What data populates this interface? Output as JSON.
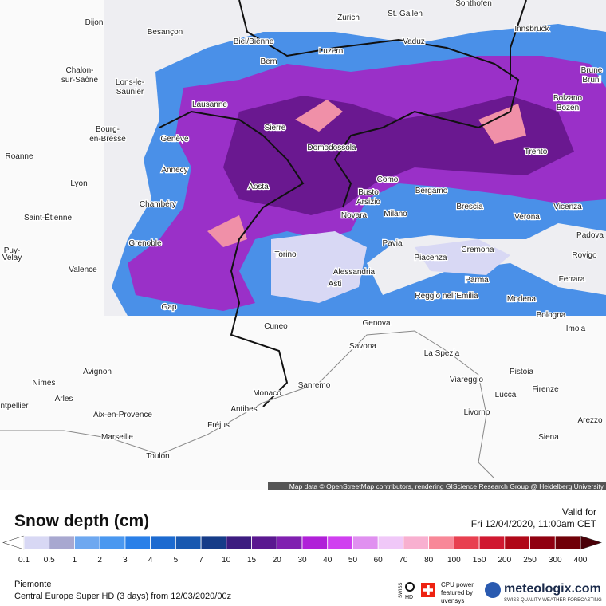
{
  "map": {
    "attribution": "Map data © OpenStreetMap contributors, rendering GIScience Research Group @ Heidelberg University",
    "cities": [
      "Dijon",
      "Besançon",
      "Biel/Bienne",
      "Zurich",
      "St. Gallen",
      "Sonthofen",
      "Innsbruck",
      "Vaduz",
      "Bern",
      "Luzern",
      "Chalon-",
      "sur-Saône",
      "Lons-le-",
      "Saunier",
      "Brune",
      "Bruni",
      "Bolzano",
      "Bozen",
      "Lausanne",
      "Sierre",
      "Domodossola",
      "Bourg-",
      "en-Bresse",
      "Genève",
      "Roanne",
      "Trento",
      "Annecy",
      "Como",
      "Lyon",
      "Aosta",
      "Busto",
      "Arsizio",
      "Bergamo",
      "Chambéry",
      "Brescia",
      "Vicenza",
      "Saint-Étienne",
      "Novara",
      "Milano",
      "Verona",
      "Padova",
      "Grenoble",
      "Pavia",
      "Cremona",
      "Puy-",
      "Velay",
      "Piacenza",
      "Torino",
      "Rovigo",
      "Valence",
      "Alessandria",
      "Parma",
      "Asti",
      "Ferrara",
      "Reggio nell'Emilia",
      "Modena",
      "Gap",
      "Bologna",
      "Cuneo",
      "Genova",
      "Imola",
      "Savona",
      "La Spezia",
      "Avignon",
      "Pistoia",
      "Nîmes",
      "Viareggio",
      "Sanremo",
      "Monaco",
      "Lucca",
      "Firenze",
      "Arles",
      "Antibes",
      "Aix-en-Provence",
      "ntpellier",
      "Fréjus",
      "Livorno",
      "Arezzo",
      "Marseille",
      "Siena",
      "Toulon"
    ]
  },
  "legend": {
    "title": "Snow depth (cm)",
    "valid_label": "Valid for",
    "valid_time": "Fri 12/04/2020, 11:00am CET",
    "ticks": [
      0.1,
      0.5,
      1,
      2,
      3,
      4,
      5,
      7,
      10,
      15,
      20,
      30,
      40,
      50,
      60,
      70,
      80,
      100,
      150,
      200,
      250,
      300,
      400
    ],
    "colors": [
      "#d8d8f4",
      "#a8a8d0",
      "#6ea8f0",
      "#4a98f0",
      "#2a80e8",
      "#1c6ad0",
      "#1858b0",
      "#163c88",
      "#3c1c80",
      "#5a1890",
      "#8020b0",
      "#b020d8",
      "#d040f0",
      "#e090f0",
      "#f0c8f8",
      "#f8b0d0",
      "#f88898",
      "#e84050",
      "#d01830",
      "#b00818",
      "#900010",
      "#700008"
    ],
    "under_color": "#ffffff",
    "over_color": "#4a0008"
  },
  "footer": {
    "region": "Piemonte",
    "model": "Central Europe Super HD (3 days)  from  12/03/2020/00z",
    "swiss": "SWISS",
    "hd": "HD",
    "cpu_1": "CPU power",
    "cpu_2": "featured by",
    "cpu_3": "uvensys",
    "brand": "meteologix.com",
    "tagline": "SWISS QUALITY WEATHER FORECASTING"
  }
}
